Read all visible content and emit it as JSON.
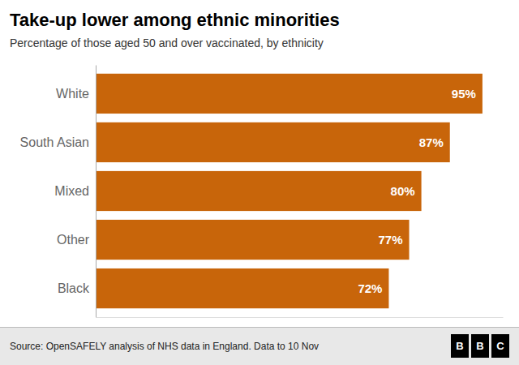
{
  "chart_data": {
    "type": "bar",
    "orientation": "horizontal",
    "title": "Take-up lower among ethnic minorities",
    "subtitle": "Percentage of those aged 50 and over vaccinated, by ethnicity",
    "categories": [
      "White",
      "South Asian",
      "Mixed",
      "Other",
      "Black"
    ],
    "values": [
      95,
      87,
      80,
      77,
      72
    ],
    "value_labels": [
      "95%",
      "87%",
      "80%",
      "77%",
      "72%"
    ],
    "data_labels": true,
    "color": "#C8650A",
    "xlim": [
      0,
      100
    ],
    "tick_labels": "y",
    "grid": false,
    "source": "Source: OpenSAFELY analysis of NHS data in England. Data to 10 Nov",
    "logo": [
      "B",
      "B",
      "C"
    ]
  }
}
